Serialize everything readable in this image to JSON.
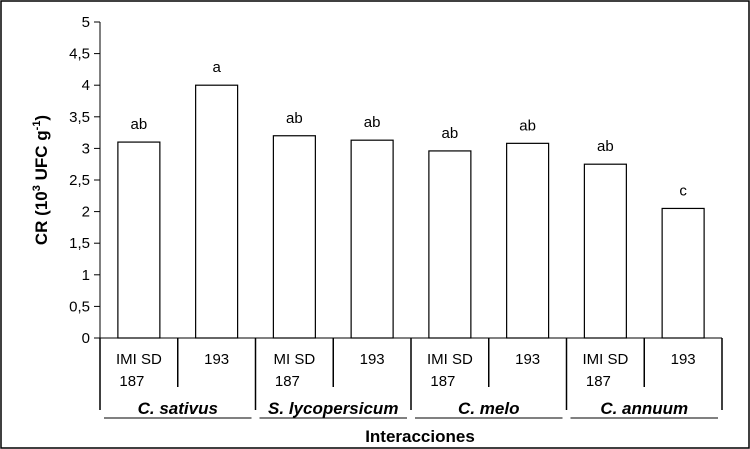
{
  "chart_data": {
    "type": "bar",
    "title": "",
    "xlabel": "Interacciones",
    "ylabel": "CR (10",
    "ylabel_sup": "3",
    "ylabel_mid": " UFC g",
    "ylabel_sup2": "-1",
    "ylabel_end": ")",
    "ylim": [
      0,
      5
    ],
    "yticks": [
      "0",
      "0,5",
      "1",
      "1,5",
      "2",
      "2,5",
      "3",
      "3,5",
      "4",
      "4,5",
      "5"
    ],
    "grid": false,
    "groups": [
      {
        "name": "C. sativus"
      },
      {
        "name": "S. lycopersicum"
      },
      {
        "name": "C. melo"
      },
      {
        "name": "C. annuum"
      }
    ],
    "categories": [
      {
        "line1": "IMI SD",
        "line2": "187",
        "group": 0,
        "value": 3.1,
        "letter": "ab"
      },
      {
        "line1": "193",
        "line2": "",
        "group": 0,
        "value": 4.0,
        "letter": "a"
      },
      {
        "line1": "MI SD",
        "line2": "187",
        "group": 1,
        "value": 3.2,
        "letter": "ab"
      },
      {
        "line1": "193",
        "line2": "",
        "group": 1,
        "value": 3.13,
        "letter": "ab"
      },
      {
        "line1": "IMI SD",
        "line2": "187",
        "group": 2,
        "value": 2.96,
        "letter": "ab"
      },
      {
        "line1": "193",
        "line2": "",
        "group": 2,
        "value": 3.08,
        "letter": "ab"
      },
      {
        "line1": "IMI SD",
        "line2": "187",
        "group": 3,
        "value": 2.75,
        "letter": "ab"
      },
      {
        "line1": "193",
        "line2": "",
        "group": 3,
        "value": 2.05,
        "letter": "c"
      }
    ]
  }
}
